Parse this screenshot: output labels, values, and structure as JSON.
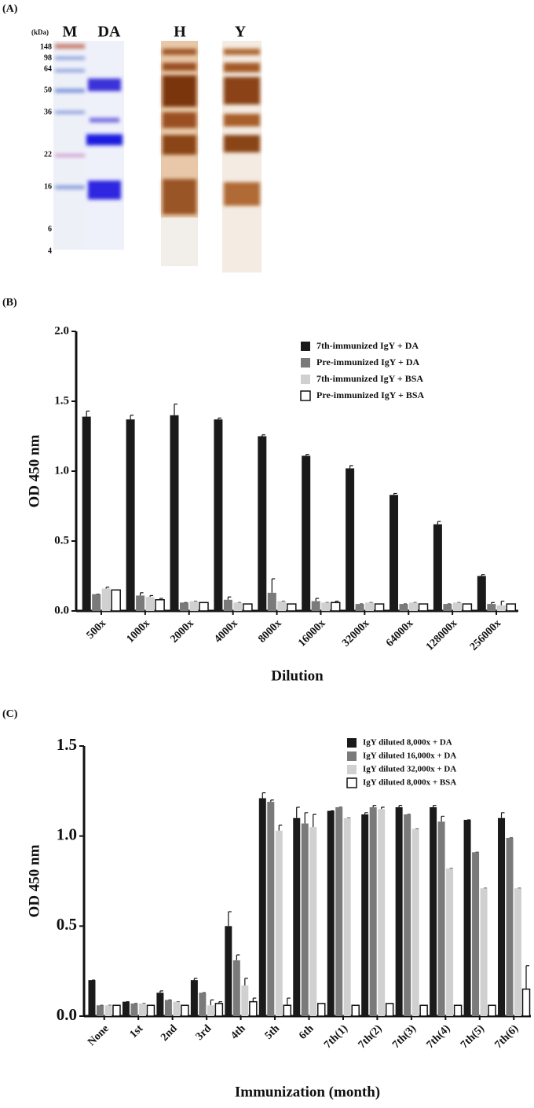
{
  "gel": {
    "panel_label": "(A)",
    "unit": "(kDa)",
    "lanes": [
      "M",
      "DA",
      "H",
      "Y"
    ],
    "markers": [
      "148",
      "98",
      "64",
      "50",
      "36",
      "22",
      "16",
      "6",
      "4"
    ]
  },
  "chart_data": [
    {
      "type": "bar",
      "panel_label": "(B)",
      "y_label": "OD 450 nm",
      "x_label": "Dilution",
      "categories": [
        "500x",
        "1000x",
        "2000x",
        "4000x",
        "8000x",
        "16000x",
        "32000x",
        "64000x",
        "128000x",
        "256000x"
      ],
      "series": [
        {
          "name": "7th-immunized IgY + DA",
          "color": "#1a1a1a",
          "values": [
            1.39,
            1.37,
            1.4,
            1.37,
            1.25,
            1.11,
            1.02,
            0.83,
            0.62,
            0.25
          ],
          "errors": [
            0.04,
            0.03,
            0.08,
            0.01,
            0.01,
            0.01,
            0.02,
            0.01,
            0.02,
            0.01
          ]
        },
        {
          "name": "Pre-immunized IgY + DA",
          "color": "#7a7a7a",
          "values": [
            0.12,
            0.11,
            0.06,
            0.08,
            0.13,
            0.07,
            0.05,
            0.05,
            0.05,
            0.05
          ],
          "errors": [
            0,
            0.02,
            0,
            0.02,
            0.1,
            0.02,
            0,
            0,
            0,
            0.01
          ]
        },
        {
          "name": "7th-immunized IgY + BSA",
          "color": "#d0d0d0",
          "values": [
            0.16,
            0.1,
            0.07,
            0.06,
            0.07,
            0.06,
            0.06,
            0.06,
            0.06,
            0.04
          ],
          "errors": [
            0.01,
            0.01,
            0,
            0,
            0,
            0,
            0,
            0,
            0,
            0.03
          ]
        },
        {
          "name": "Pre-immunized IgY + BSA",
          "color": "#ffffff",
          "values": [
            0.15,
            0.08,
            0.06,
            0.05,
            0.05,
            0.06,
            0.05,
            0.05,
            0.05,
            0.05
          ],
          "errors": [
            0,
            0.01,
            0,
            0,
            0,
            0.01,
            0,
            0,
            0,
            0
          ]
        }
      ],
      "ylim": [
        0,
        2.0
      ],
      "yticks": [
        {
          "value": 0,
          "label": "0.0"
        },
        0.5,
        {
          "value": 1.0,
          "label": "1.0"
        },
        1.5,
        {
          "value": 2.0,
          "label": "2.0"
        }
      ],
      "legend": "top-right"
    },
    {
      "type": "bar",
      "panel_label": "(C)",
      "y_label": "OD 450 nm",
      "x_label": "Immunization (month)",
      "categories": [
        "None",
        "1st",
        "2nd",
        "3rd",
        "4th",
        "5th",
        "6th",
        "7th(1)",
        "7th(2)",
        "7th(3)",
        "7th(4)",
        "7th(5)",
        "7th(6)"
      ],
      "series": [
        {
          "name": "IgY diluted 8,000x + DA",
          "color": "#1a1a1a",
          "values": [
            0.2,
            0.08,
            0.13,
            0.2,
            0.5,
            1.21,
            1.1,
            1.14,
            1.12,
            1.16,
            1.16,
            1.09,
            1.1
          ],
          "errors": [
            0,
            0,
            0.01,
            0.01,
            0.08,
            0.03,
            0.06,
            0,
            0.01,
            0.01,
            0.01,
            0,
            0.03
          ]
        },
        {
          "name": "IgY diluted 16,000x + DA",
          "color": "#7a7a7a",
          "values": [
            0.06,
            0.07,
            0.09,
            0.13,
            0.31,
            1.19,
            1.07,
            1.16,
            1.16,
            1.12,
            1.08,
            0.91,
            0.99
          ],
          "errors": [
            0,
            0,
            0,
            0,
            0.03,
            0.01,
            0.06,
            0,
            0.01,
            0,
            0.03,
            0,
            0
          ]
        },
        {
          "name": "IgY diluted 32,000x + DA",
          "color": "#d0d0d0",
          "values": [
            0.06,
            0.07,
            0.08,
            0.06,
            0.17,
            1.03,
            1.05,
            1.1,
            1.15,
            1.04,
            0.82,
            0.71,
            0.71
          ],
          "errors": [
            0,
            0,
            0,
            0.03,
            0.04,
            0.03,
            0.07,
            0,
            0.01,
            0,
            0,
            0,
            0
          ]
        },
        {
          "name": "IgY diluted 8,000x + BSA",
          "color": "#ffffff",
          "values": [
            0.06,
            0.06,
            0.06,
            0.07,
            0.08,
            0.06,
            0.07,
            0.06,
            0.07,
            0.06,
            0.06,
            0.06,
            0.15
          ],
          "errors": [
            0,
            0,
            0,
            0.01,
            0.02,
            0.04,
            0,
            0,
            0,
            0,
            0,
            0,
            0.13
          ]
        }
      ],
      "ylim": [
        0,
        1.5
      ],
      "yticks": [
        {
          "value": 0,
          "label": "0.0"
        },
        0.5,
        {
          "value": 1.0,
          "label": "1.0"
        },
        1.5
      ],
      "legend": "top-right"
    }
  ]
}
